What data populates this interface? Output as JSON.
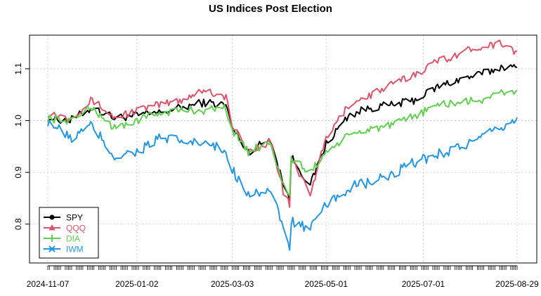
{
  "chart_data": {
    "type": "line",
    "title": "US Indices Post Election",
    "xlabel": "",
    "ylabel": "",
    "x_tick_labels": [
      "2024-11-07",
      "2025-01-02",
      "2025-03-03",
      "2025-05-01",
      "2025-07-01",
      "2025-08-29"
    ],
    "y_ticks": [
      0.8,
      0.9,
      1.0,
      1.1
    ],
    "ylim": [
      0.725,
      1.165
    ],
    "xlim": [
      "2024-11-07",
      "2025-08-29"
    ],
    "grid": true,
    "legend_position": "bottom-left",
    "x": [
      "2024-11-07",
      "2024-11-21",
      "2024-12-05",
      "2024-12-19",
      "2025-01-02",
      "2025-01-16",
      "2025-01-30",
      "2025-02-13",
      "2025-02-27",
      "2025-03-03",
      "2025-03-13",
      "2025-03-27",
      "2025-04-04",
      "2025-04-08",
      "2025-04-09",
      "2025-04-21",
      "2025-05-01",
      "2025-05-15",
      "2025-05-29",
      "2025-06-12",
      "2025-06-26",
      "2025-07-10",
      "2025-07-24",
      "2025-08-07",
      "2025-08-21",
      "2025-08-29"
    ],
    "series": [
      {
        "name": "SPY",
        "color": "#000000",
        "marker": "circle",
        "values": [
          1.005,
          1.0,
          1.025,
          1.005,
          1.01,
          1.015,
          1.025,
          1.035,
          1.03,
          0.985,
          0.94,
          0.965,
          0.88,
          0.845,
          0.93,
          0.875,
          0.955,
          1.01,
          1.025,
          1.03,
          1.04,
          1.065,
          1.08,
          1.09,
          1.105,
          1.1
        ]
      },
      {
        "name": "QQQ",
        "color": "#DF536B",
        "marker": "triangle",
        "values": [
          1.015,
          1.005,
          1.04,
          1.005,
          1.02,
          1.03,
          1.04,
          1.06,
          1.045,
          0.99,
          0.94,
          0.96,
          0.865,
          0.835,
          0.925,
          0.86,
          0.965,
          1.03,
          1.05,
          1.07,
          1.09,
          1.115,
          1.13,
          1.145,
          1.15,
          1.13
        ]
      },
      {
        "name": "DIA",
        "color": "#61D04F",
        "marker": "plus",
        "values": [
          1.005,
          1.0,
          1.025,
          0.985,
          1.0,
          1.015,
          1.02,
          1.02,
          1.025,
          0.98,
          0.94,
          0.96,
          0.875,
          0.86,
          0.925,
          0.9,
          0.94,
          0.97,
          0.985,
          0.99,
          1.01,
          1.03,
          1.035,
          1.04,
          1.055,
          1.055
        ]
      },
      {
        "name": "IWM",
        "color": "#2297E6",
        "marker": "x",
        "values": [
          1.0,
          0.965,
          0.99,
          0.93,
          0.94,
          0.965,
          0.96,
          0.955,
          0.94,
          0.905,
          0.86,
          0.865,
          0.79,
          0.76,
          0.805,
          0.79,
          0.835,
          0.87,
          0.88,
          0.895,
          0.92,
          0.935,
          0.95,
          0.965,
          0.99,
          1.0
        ]
      }
    ]
  }
}
